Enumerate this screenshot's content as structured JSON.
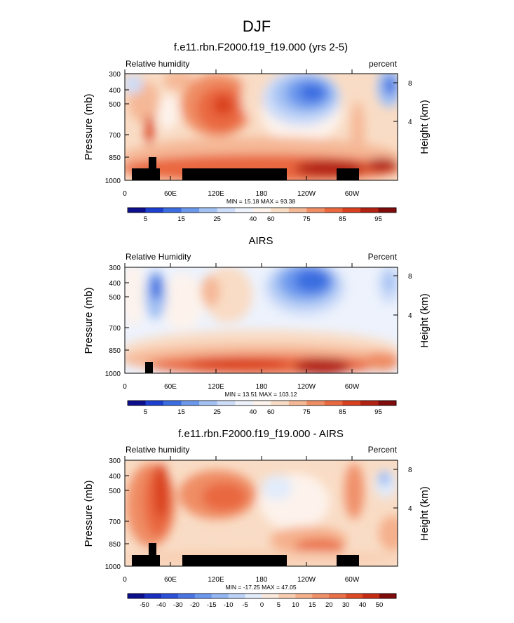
{
  "figure_title": "DJF",
  "chart_data": [
    {
      "type": "heatmap",
      "title": "f.e11.rbn.F2000.f19_f19.000 (yrs 2-5)",
      "left_label": "Relative humidity",
      "right_label": "percent",
      "ylabel": "Pressure (mb)",
      "ylabel_right": "Height (km)",
      "ylim": [
        1000,
        300
      ],
      "yticks": [
        "300",
        "400",
        "500",
        "700",
        "850",
        "1000"
      ],
      "yticks_right": [
        "8",
        "4"
      ],
      "xticks": [
        "0",
        "60E",
        "120E",
        "180",
        "120W",
        "60W"
      ],
      "stats": "MIN = 15.18  MAX = 93.38",
      "colorbar_labels": [
        "5",
        "15",
        "25",
        "40",
        "60",
        "75",
        "85",
        "95"
      ],
      "colorbar_colors": [
        "#0d0e8c",
        "#1c3fd0",
        "#3b6de0",
        "#6c98ec",
        "#a3c1f3",
        "#cddcf8",
        "#edf2fc",
        "#fdf3ec",
        "#f9dcc5",
        "#f5b896",
        "#ef8d65",
        "#e9683f",
        "#d9401f",
        "#b22212",
        "#7f0b0b"
      ]
    },
    {
      "type": "heatmap",
      "title": "AIRS",
      "left_label": "Relative Humidity",
      "right_label": "Percent",
      "ylabel": "Pressure (mb)",
      "ylabel_right": "Height (km)",
      "ylim": [
        1000,
        300
      ],
      "yticks": [
        "300",
        "400",
        "500",
        "700",
        "850",
        "1000"
      ],
      "yticks_right": [
        "8",
        "4"
      ],
      "xticks": [
        "0",
        "60E",
        "120E",
        "180",
        "120W",
        "60W"
      ],
      "stats": "MIN = 13.51  MAX = 103.12",
      "colorbar_labels": [
        "5",
        "15",
        "25",
        "40",
        "60",
        "75",
        "85",
        "95"
      ],
      "colorbar_colors": [
        "#0d0e8c",
        "#1c3fd0",
        "#3b6de0",
        "#6c98ec",
        "#a3c1f3",
        "#cddcf8",
        "#edf2fc",
        "#fdf3ec",
        "#f9dcc5",
        "#f5b896",
        "#ef8d65",
        "#e9683f",
        "#d9401f",
        "#b22212",
        "#7f0b0b"
      ]
    },
    {
      "type": "heatmap",
      "title": "f.e11.rbn.F2000.f19_f19.000 - AIRS",
      "left_label": "Relative humidity",
      "right_label": "Percent",
      "ylabel": "Pressure (mb)",
      "ylabel_right": "Height (km)",
      "ylim": [
        1000,
        300
      ],
      "yticks": [
        "300",
        "400",
        "500",
        "700",
        "850",
        "1000"
      ],
      "yticks_right": [
        "8",
        "4"
      ],
      "xticks": [
        "0",
        "60E",
        "120E",
        "180",
        "120W",
        "60W"
      ],
      "stats": "MIN = -17.25  MAX = 47.05",
      "colorbar_labels": [
        "-50",
        "-40",
        "-30",
        "-20",
        "-15",
        "-10",
        "-5",
        "0",
        "5",
        "10",
        "15",
        "20",
        "30",
        "40",
        "50"
      ],
      "colorbar_colors": [
        "#0d0e8c",
        "#1a2fbf",
        "#2c50d8",
        "#4a74e4",
        "#6c98ec",
        "#94b6f2",
        "#bcd2f7",
        "#e2ecfb",
        "#fbe8dc",
        "#f8cdb1",
        "#f5b08c",
        "#f0906a",
        "#ea7048",
        "#dd4a25",
        "#c62c14",
        "#7f0b0b"
      ]
    }
  ]
}
